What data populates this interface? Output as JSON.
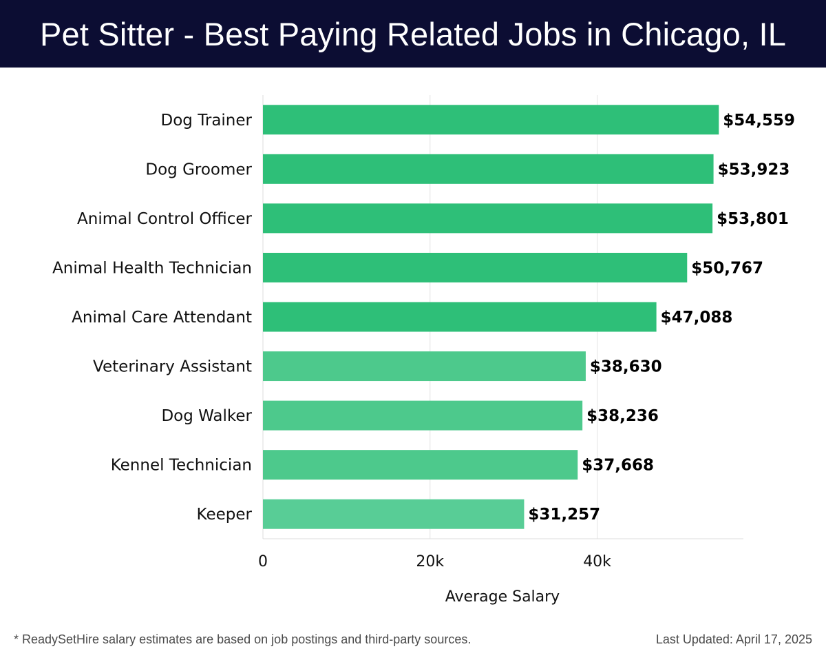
{
  "header": {
    "title": "Pet Sitter - Best Paying Related Jobs in Chicago, IL"
  },
  "footer": {
    "note": "* ReadySetHire salary estimates are based on job postings and third-party sources.",
    "updated": "Last Updated: April 17, 2025"
  },
  "chart_data": {
    "type": "bar",
    "orientation": "horizontal",
    "title": "Pet Sitter - Best Paying Related Jobs in Chicago, IL",
    "xlabel": "Average Salary",
    "ylabel": "",
    "xlim": [
      0,
      57500
    ],
    "xticks": [
      0,
      20000,
      40000
    ],
    "xtick_labels": [
      "0",
      "20k",
      "40k"
    ],
    "grid": "vertical",
    "categories": [
      "Dog Trainer",
      "Dog Groomer",
      "Animal Control Officer",
      "Animal Health Technician",
      "Animal Care Attendant",
      "Veterinary Assistant",
      "Dog Walker",
      "Kennel Technician",
      "Keeper"
    ],
    "values": [
      54559,
      53923,
      53801,
      50767,
      47088,
      38630,
      38236,
      37668,
      31257
    ],
    "value_labels": [
      "$54,559",
      "$53,923",
      "$53,801",
      "$50,767",
      "$47,088",
      "$38,630",
      "$38,236",
      "$37,668",
      "$31,257"
    ],
    "colors": [
      "#2ebf78",
      "#2ebf78",
      "#2ebf78",
      "#2ebf78",
      "#2ebf78",
      "#4dc98c",
      "#4dc98c",
      "#4dc98c",
      "#58cd96"
    ]
  }
}
